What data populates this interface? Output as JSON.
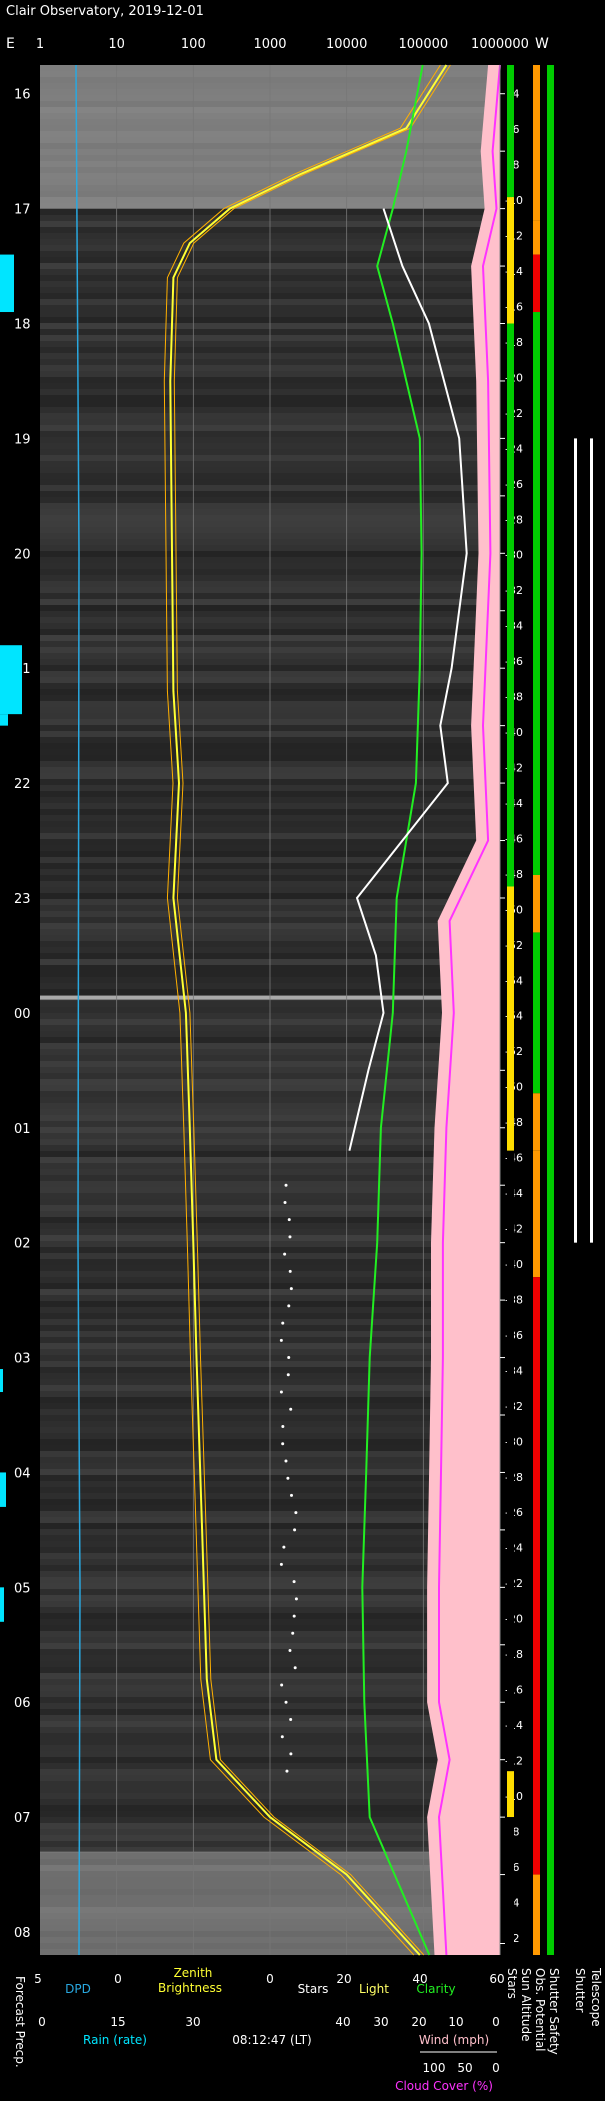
{
  "title": "Clair Observatory, 2019-12-01",
  "colors": {
    "background": "#000000",
    "sky": "#3a3a3a",
    "dpd": "#29a8e0",
    "rain": "#00e5ff",
    "zenith": "#ffff33",
    "sun_trace": "#ffb000",
    "stars": "#ffffff",
    "light": "#ffff66",
    "clarity": "#22ee22",
    "cloud": "#ff33ff",
    "pink": "#ffc0cb",
    "green": "#00cc00",
    "yellow": "#ffdd00",
    "orange": "#ff9900",
    "red": "#ee0000"
  },
  "chart_data": {
    "type": "line",
    "title": "Clair Observatory, 2019-12-01",
    "direction_left": "E",
    "direction_right": "W",
    "top_axis": {
      "scale": "log",
      "ticks": [
        "1",
        "10",
        "100",
        "1000",
        "10000",
        "100000",
        "1000000"
      ]
    },
    "time_axis": {
      "labels": [
        "16",
        "17",
        "18",
        "19",
        "20",
        "21",
        "22",
        "23",
        "00",
        "01",
        "02",
        "03",
        "04",
        "05",
        "06",
        "07",
        "08"
      ],
      "first_hour": 16,
      "last_hour": 32,
      "start_hour": 15.75,
      "end_hour": 32.2
    },
    "sun_altitude": {
      "label": "Sun Altitude",
      "points": [
        {
          "t": 16.0,
          "alt": -4
        },
        {
          "t": 16.5,
          "alt": -8
        },
        {
          "t": 17.0,
          "alt": -12
        },
        {
          "t": 17.5,
          "alt": -16
        },
        {
          "t": 18.0,
          "alt": -20
        },
        {
          "t": 18.5,
          "alt": -24
        },
        {
          "t": 19.0,
          "alt": -28
        },
        {
          "t": 19.5,
          "alt": -32
        },
        {
          "t": 20.0,
          "alt": -36
        },
        {
          "t": 20.5,
          "alt": -40
        },
        {
          "t": 21.0,
          "alt": -44
        },
        {
          "t": 21.5,
          "alt": -48
        },
        {
          "t": 22.0,
          "alt": -50
        },
        {
          "t": 22.5,
          "alt": -52
        },
        {
          "t": 23.0,
          "alt": -54
        },
        {
          "t": 24.5,
          "alt": -54
        },
        {
          "t": 25.0,
          "alt": -52
        },
        {
          "t": 25.5,
          "alt": -50
        },
        {
          "t": 26.0,
          "alt": -48
        },
        {
          "t": 26.5,
          "alt": -44
        },
        {
          "t": 27.0,
          "alt": -40
        },
        {
          "t": 27.5,
          "alt": -36
        },
        {
          "t": 28.0,
          "alt": -32
        },
        {
          "t": 28.5,
          "alt": -28
        },
        {
          "t": 29.0,
          "alt": -24
        },
        {
          "t": 29.5,
          "alt": -20
        },
        {
          "t": 30.0,
          "alt": -16
        },
        {
          "t": 30.5,
          "alt": -12
        },
        {
          "t": 31.0,
          "alt": -8
        },
        {
          "t": 31.5,
          "alt": -4
        },
        {
          "t": 32.1,
          "alt": -2
        }
      ],
      "labels": [
        "-4",
        "-6",
        "-8",
        "-10",
        "-12",
        "-14",
        "-16",
        "-18",
        "-20",
        "-22",
        "-24",
        "-26",
        "-28",
        "-30",
        "-32",
        "-34",
        "-36",
        "-38",
        "-40",
        "-42",
        "-44",
        "-46",
        "-48",
        "-50",
        "-52",
        "-54",
        "-54",
        "-52",
        "-50",
        "-48",
        "-46",
        "-44",
        "-42",
        "-40",
        "-38",
        "-36",
        "-34",
        "-32",
        "-30",
        "-28",
        "-26",
        "-24",
        "-22",
        "-20",
        "-18",
        "-16",
        "-14",
        "-12",
        "-10",
        "-8",
        "-6",
        "-4",
        "-2"
      ]
    },
    "zenith_brightness": {
      "name": "Zenith Brightness",
      "points": [
        {
          "t": 15.75,
          "v": 200000
        },
        {
          "t": 16.3,
          "v": 60000
        },
        {
          "t": 16.7,
          "v": 2500
        },
        {
          "t": 17.0,
          "v": 300
        },
        {
          "t": 17.3,
          "v": 90
        },
        {
          "t": 17.6,
          "v": 55
        },
        {
          "t": 18.5,
          "v": 50
        },
        {
          "t": 21.2,
          "v": 55
        },
        {
          "t": 22.0,
          "v": 65
        },
        {
          "t": 23.0,
          "v": 55
        },
        {
          "t": 24.0,
          "v": 80
        },
        {
          "t": 25.0,
          "v": 90
        },
        {
          "t": 26.0,
          "v": 100
        },
        {
          "t": 27.0,
          "v": 110
        },
        {
          "t": 28.5,
          "v": 130
        },
        {
          "t": 29.8,
          "v": 150
        },
        {
          "t": 30.5,
          "v": 200
        },
        {
          "t": 31.0,
          "v": 1000
        },
        {
          "t": 31.5,
          "v": 10000
        },
        {
          "t": 32.2,
          "v": 90000
        }
      ]
    },
    "stars": {
      "name": "Stars",
      "points": [
        {
          "t": 17.0,
          "v": 30
        },
        {
          "t": 17.5,
          "v": 35
        },
        {
          "t": 18.0,
          "v": 42
        },
        {
          "t": 19.0,
          "v": 50
        },
        {
          "t": 20.0,
          "v": 52
        },
        {
          "t": 21.0,
          "v": 48
        },
        {
          "t": 21.5,
          "v": 45
        },
        {
          "t": 22.0,
          "v": 47
        },
        {
          "t": 23.0,
          "v": 23
        },
        {
          "t": 23.5,
          "v": 28
        },
        {
          "t": 24.0,
          "v": 30
        },
        {
          "t": 24.5,
          "v": 26
        },
        {
          "t": 25.2,
          "v": 21
        }
      ]
    },
    "clarity": {
      "name": "Clarity",
      "points": [
        {
          "t": 15.75,
          "v": 98000
        },
        {
          "t": 16.5,
          "v": 60000
        },
        {
          "t": 17.0,
          "v": 40000
        },
        {
          "t": 17.5,
          "v": 25000
        },
        {
          "t": 18.0,
          "v": 40000
        },
        {
          "t": 19.0,
          "v": 90000
        },
        {
          "t": 20.0,
          "v": 95000
        },
        {
          "t": 21.0,
          "v": 90000
        },
        {
          "t": 22.0,
          "v": 80000
        },
        {
          "t": 23.0,
          "v": 45000
        },
        {
          "t": 24.0,
          "v": 40000
        },
        {
          "t": 25.0,
          "v": 28000
        },
        {
          "t": 26.0,
          "v": 25000
        },
        {
          "t": 27.0,
          "v": 20000
        },
        {
          "t": 28.0,
          "v": 18000
        },
        {
          "t": 29.0,
          "v": 16000
        },
        {
          "t": 30.0,
          "v": 17000
        },
        {
          "t": 31.0,
          "v": 20000
        },
        {
          "t": 32.2,
          "v": 120000
        }
      ]
    },
    "cloud_cover": {
      "name": "Cloud Cover (%)",
      "points": [
        {
          "t": 15.75,
          "v": 1000000
        },
        {
          "t": 16.5,
          "v": 800000
        },
        {
          "t": 17.0,
          "v": 900000
        },
        {
          "t": 17.5,
          "v": 600000
        },
        {
          "t": 18.5,
          "v": 700000
        },
        {
          "t": 20.0,
          "v": 750000
        },
        {
          "t": 21.5,
          "v": 600000
        },
        {
          "t": 22.5,
          "v": 700000
        },
        {
          "t": 23.2,
          "v": 220000
        },
        {
          "t": 24.0,
          "v": 250000
        },
        {
          "t": 25.0,
          "v": 200000
        },
        {
          "t": 26.0,
          "v": 180000
        },
        {
          "t": 27.0,
          "v": 180000
        },
        {
          "t": 28.0,
          "v": 170000
        },
        {
          "t": 29.0,
          "v": 160000
        },
        {
          "t": 30.0,
          "v": 160000
        },
        {
          "t": 30.5,
          "v": 220000
        },
        {
          "t": 31.0,
          "v": 160000
        },
        {
          "t": 32.2,
          "v": 200000
        }
      ]
    },
    "dpd": {
      "name": "DPD",
      "value": 4
    },
    "status_columns": {
      "stars": {
        "label": "Stars",
        "segments": [
          {
            "from": 15.75,
            "to": 16.9,
            "c": "green"
          },
          {
            "from": 16.9,
            "to": 18.0,
            "c": "yellow"
          },
          {
            "from": 18.0,
            "to": 22.9,
            "c": "green"
          },
          {
            "from": 22.9,
            "to": 25.2,
            "c": "yellow"
          },
          {
            "from": 25.2,
            "to": 25.8,
            "c": "black"
          },
          {
            "from": 25.8,
            "to": 30.6,
            "c": "black"
          },
          {
            "from": 30.6,
            "to": 31.0,
            "c": "yellow"
          },
          {
            "from": 31.0,
            "to": 32.2,
            "c": "black"
          }
        ]
      },
      "obs_potential": {
        "label": "Obs. Potential",
        "segments": [
          {
            "from": 15.75,
            "to": 17.1,
            "c": "orange"
          },
          {
            "from": 17.1,
            "to": 17.4,
            "c": "orange"
          },
          {
            "from": 17.4,
            "to": 17.9,
            "c": "red"
          },
          {
            "from": 17.9,
            "to": 22.8,
            "c": "green"
          },
          {
            "from": 22.8,
            "to": 23.3,
            "c": "orange"
          },
          {
            "from": 23.3,
            "to": 24.7,
            "c": "green"
          },
          {
            "from": 24.7,
            "to": 25.2,
            "c": "orange"
          },
          {
            "from": 25.2,
            "to": 26.3,
            "c": "orange"
          },
          {
            "from": 26.3,
            "to": 31.5,
            "c": "red"
          },
          {
            "from": 31.5,
            "to": 32.2,
            "c": "orange"
          }
        ]
      },
      "shutter_safety": {
        "label": "Shutter Safety",
        "segments": [
          {
            "from": 15.75,
            "to": 32.2,
            "c": "green"
          }
        ]
      },
      "shutter": {
        "label": "Shutter",
        "open": [
          {
            "from": 19.0,
            "to": 26.0
          }
        ]
      },
      "telescope": {
        "label": "Telescope",
        "open": [
          {
            "from": 19.0,
            "to": 26.0
          }
        ]
      }
    },
    "bottom_axes": {
      "dpd": {
        "label": "DPD",
        "ticks": [
          "5",
          "0"
        ]
      },
      "zenith": {
        "label_line1": "Zenith",
        "label_line2": "Brightness"
      },
      "stars": {
        "label": "Stars",
        "ticks": [
          "0"
        ]
      },
      "light": {
        "label": "Light",
        "ticks": [
          "20"
        ]
      },
      "clarity": {
        "label": "Clarity",
        "ticks": [
          "40",
          "60"
        ]
      },
      "rain": {
        "label": "Rain (rate)",
        "ticks": [
          "0",
          "15",
          "30"
        ]
      },
      "time": {
        "label": "08:12:47 (LT)"
      },
      "wind": {
        "label": "Wind (mph)",
        "ticks": [
          "40",
          "30",
          "20",
          "10",
          "0"
        ]
      },
      "cloud": {
        "label": "Cloud Cover (%)",
        "ticks": [
          "100",
          "50",
          "0"
        ]
      },
      "forecast": {
        "label": "Forecast Precp."
      }
    }
  }
}
